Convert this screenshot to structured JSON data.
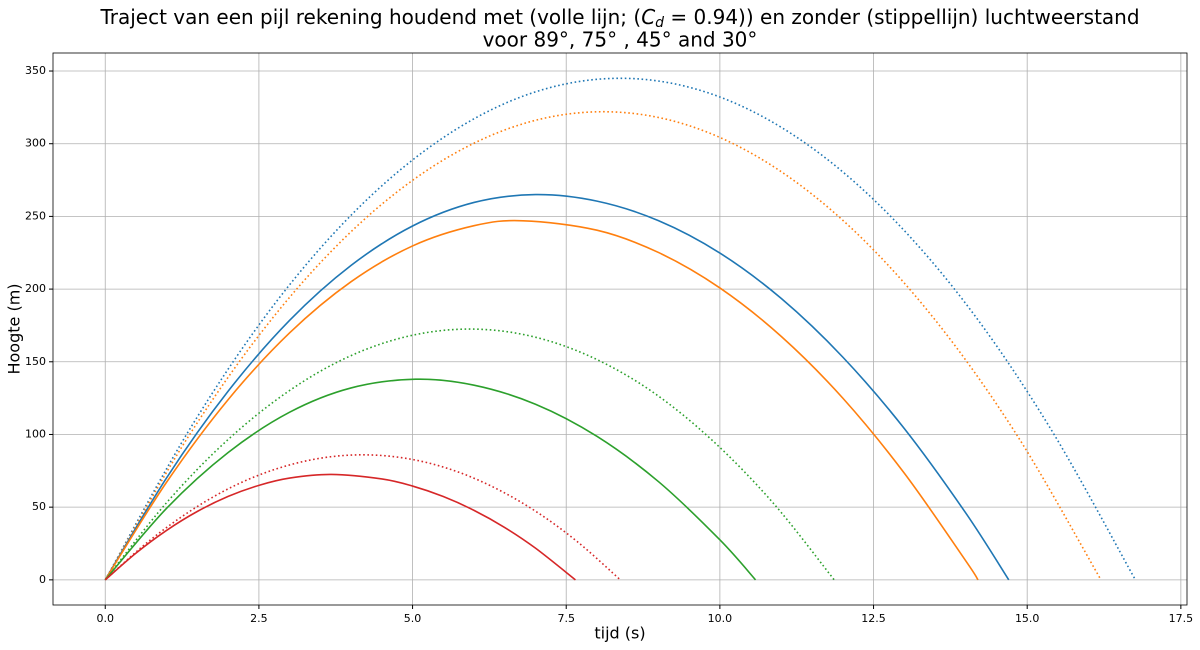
{
  "chart_data": {
    "type": "line",
    "title": {
      "line1": [
        "Traject van een pijl rekening houdend met (volle lijn; (",
        "C",
        "d",
        " = 0.94)) en zonder (stippellijn) luchtweerstand"
      ],
      "line2": "voor 89°, 75° , 45° and 30°"
    },
    "xlabel": "tijd (s)",
    "ylabel": "Hoogte (m)",
    "xlim": [
      -0.85,
      17.6
    ],
    "ylim": [
      -17.3,
      362.4
    ],
    "xticks": [
      {
        "value": 0,
        "label": "0.0"
      },
      {
        "value": 2.5,
        "label": "2.5"
      },
      {
        "value": 5,
        "label": "5.0"
      },
      {
        "value": 7.5,
        "label": "7.5"
      },
      {
        "value": 10,
        "label": "10.0"
      },
      {
        "value": 12.5,
        "label": "12.5"
      },
      {
        "value": 15,
        "label": "15.0"
      },
      {
        "value": 17.5,
        "label": "17.5"
      }
    ],
    "yticks": [
      0,
      50,
      100,
      150,
      200,
      250,
      300,
      350
    ],
    "grid": true,
    "series": [
      {
        "color": "#1f77b4",
        "linestyle": "dotted",
        "x": [
          0,
          1.4,
          2.79,
          4.19,
          5.59,
          6.98,
          8.38,
          9.78,
          11.17,
          12.57,
          13.97,
          15.36,
          16.76
        ],
        "values": [
          0,
          105.4,
          191.7,
          258.8,
          306.7,
          335.4,
          345,
          335.4,
          306.7,
          258.8,
          191.7,
          105.4,
          0
        ]
      },
      {
        "color": "#ff7f0e",
        "linestyle": "dotted",
        "x": [
          0,
          1.35,
          2.7,
          4.05,
          5.4,
          6.75,
          8.1,
          9.45,
          10.8,
          12.15,
          13.5,
          14.85,
          16.2
        ],
        "values": [
          0,
          98.4,
          178.9,
          241.5,
          286.2,
          313.1,
          322,
          313.1,
          286.2,
          241.5,
          178.9,
          98.4,
          0
        ]
      },
      {
        "color": "#2ca02c",
        "linestyle": "dotted",
        "x": [
          0,
          0.99,
          1.98,
          2.97,
          3.95,
          4.94,
          5.93,
          6.92,
          7.91,
          8.9,
          9.88,
          10.87,
          11.86
        ],
        "values": [
          0,
          52.7,
          95.8,
          129.4,
          153.3,
          167.7,
          172.5,
          167.7,
          153.3,
          129.4,
          95.8,
          52.7,
          0
        ]
      },
      {
        "color": "#d62728",
        "linestyle": "dotted",
        "x": [
          0,
          0.7,
          1.4,
          2.09,
          2.79,
          3.49,
          4.19,
          4.89,
          5.59,
          6.28,
          6.98,
          7.68,
          8.38
        ],
        "values": [
          0,
          26.3,
          47.8,
          64.5,
          76.4,
          83.6,
          86,
          83.6,
          76.4,
          64.5,
          47.8,
          26.3,
          0
        ]
      },
      {
        "color": "#1f77b4",
        "linestyle": "solid",
        "x": [
          0,
          1,
          2,
          3,
          4,
          5,
          6,
          7,
          8,
          9,
          10,
          11,
          12,
          13,
          14,
          14.7
        ],
        "values": [
          0,
          70.3,
          129.8,
          178.5,
          216.3,
          243.4,
          259.6,
          265,
          260.5,
          247.1,
          224.8,
          193.5,
          153.2,
          104.1,
          46,
          0
        ]
      },
      {
        "color": "#ff7f0e",
        "linestyle": "solid",
        "x": [
          0,
          1,
          2,
          3,
          4,
          5,
          6,
          6.8,
          8,
          9,
          10,
          11,
          12,
          13,
          14,
          14.2
        ],
        "values": [
          0,
          67.3,
          124,
          169.9,
          205.1,
          229.7,
          243.6,
          247,
          240.5,
          225.2,
          200.8,
          167.4,
          125,
          73.4,
          13.1,
          0
        ]
      },
      {
        "color": "#2ca02c",
        "linestyle": "solid",
        "x": [
          0,
          1,
          2,
          3,
          4,
          5.05,
          6,
          7,
          8,
          9,
          10,
          10.58
        ],
        "values": [
          0,
          49.3,
          87.6,
          115.3,
          132,
          138,
          133.9,
          120.8,
          98.7,
          67.6,
          27.5,
          0
        ]
      },
      {
        "color": "#d62728",
        "linestyle": "solid",
        "x": [
          0,
          0.5,
          1,
          1.5,
          2,
          2.5,
          3,
          3.68,
          4.5,
          5,
          5.5,
          6,
          6.5,
          7,
          7.65
        ],
        "values": [
          0,
          18.4,
          34.1,
          47.1,
          57.4,
          65,
          70,
          72.5,
          69.4,
          64.5,
          57.3,
          47.8,
          36,
          21.8,
          0
        ]
      }
    ]
  }
}
